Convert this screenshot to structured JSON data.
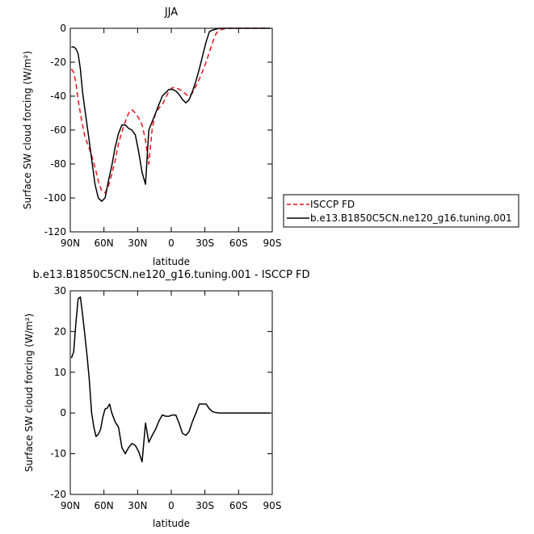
{
  "chart_data": [
    {
      "type": "line",
      "title": "JJA",
      "xlabel": "latitude",
      "ylabel": "Surface SW cloud forcing (W/m²)",
      "xlim": [
        90,
        -90
      ],
      "ylim": [
        -120,
        0
      ],
      "x_ticks": [
        "90N",
        "60N",
        "30N",
        "0",
        "30S",
        "60S",
        "90S"
      ],
      "x_tick_values": [
        90,
        60,
        30,
        0,
        -30,
        -60,
        -90
      ],
      "y_ticks": [
        0,
        -20,
        -40,
        -60,
        -80,
        -100,
        -120
      ],
      "legend_position": "right",
      "series": [
        {
          "name": "ISCCP FD",
          "color": "#e8101a",
          "dash": "dashed",
          "x": [
            89,
            87,
            85,
            83,
            80,
            77,
            74,
            71,
            68,
            65,
            62,
            59,
            56,
            53,
            50,
            47,
            44,
            41,
            38,
            35,
            32,
            29,
            26,
            23,
            20,
            17,
            14,
            11,
            8,
            5,
            2,
            -1,
            -4,
            -7,
            -10,
            -13,
            -16,
            -19,
            -22,
            -25,
            -28,
            -31,
            -34,
            -37,
            -40,
            -43,
            -46,
            -49,
            -52,
            -55,
            -58,
            -61,
            -64,
            -67,
            -70,
            -73,
            -76,
            -79,
            -82,
            -85,
            -88
          ],
          "y": [
            -24,
            -26,
            -32,
            -42,
            -54,
            -64,
            -69,
            -75,
            -82,
            -90,
            -96,
            -97,
            -93,
            -86,
            -78,
            -68,
            -61,
            -55,
            -50,
            -48,
            -50,
            -53,
            -57,
            -66,
            -80,
            -59,
            -50,
            -47,
            -45,
            -41,
            -37,
            -35,
            -35,
            -36,
            -37,
            -39,
            -40,
            -38,
            -34,
            -30,
            -25,
            -20,
            -14,
            -8,
            -3,
            -1,
            -0.5,
            -0.2,
            0,
            0,
            0,
            0,
            0,
            0,
            0,
            0,
            0,
            0,
            0,
            0,
            0
          ]
        },
        {
          "name": "b.e13.B1850C5CN.ne120_g16.tuning.001",
          "color": "#000000",
          "dash": "solid",
          "x": [
            89,
            87,
            85,
            83,
            81,
            79,
            77,
            74,
            71,
            68,
            65,
            62,
            59,
            56,
            53,
            50,
            47,
            44,
            41,
            38,
            35,
            32,
            29,
            26,
            23,
            20,
            17,
            14,
            11,
            8,
            5,
            2,
            -1,
            -4,
            -7,
            -10,
            -13,
            -16,
            -19,
            -22,
            -25,
            -28,
            -31,
            -34,
            -37,
            -40,
            -43,
            -46,
            -49,
            -52,
            -55,
            -58,
            -61,
            -64,
            -67,
            -70,
            -73,
            -76,
            -79,
            -82,
            -85,
            -88
          ],
          "y": [
            -11,
            -11,
            -12,
            -15,
            -24,
            -38,
            -48,
            -62,
            -77,
            -92,
            -100,
            -102,
            -100,
            -90,
            -81,
            -70,
            -62,
            -57,
            -57,
            -59,
            -60,
            -63,
            -73,
            -85,
            -92,
            -60,
            -55,
            -50,
            -45,
            -40,
            -38,
            -36,
            -36,
            -37,
            -39,
            -42,
            -44,
            -42,
            -37,
            -31,
            -24,
            -16,
            -8,
            -2,
            -1,
            -0.5,
            0,
            0,
            0,
            0,
            0,
            0,
            0,
            0,
            0,
            0,
            0,
            0,
            0,
            0,
            0,
            0
          ]
        }
      ]
    },
    {
      "type": "line",
      "title": "b.e13.B1850C5CN.ne120_g16.tuning.001 - ISCCP FD",
      "xlabel": "latitude",
      "ylabel": "Surface SW cloud forcing (W/m²)",
      "xlim": [
        90,
        -90
      ],
      "ylim": [
        -20,
        30
      ],
      "x_ticks": [
        "90N",
        "60N",
        "30N",
        "0",
        "30S",
        "60S",
        "90S"
      ],
      "x_tick_values": [
        90,
        60,
        30,
        0,
        -30,
        -60,
        -90
      ],
      "y_ticks": [
        30,
        20,
        10,
        0,
        -10,
        -20
      ],
      "series": [
        {
          "name": "",
          "color": "#000000",
          "dash": "solid",
          "x": [
            89,
            87,
            85,
            83,
            81,
            79,
            77,
            75,
            73,
            71,
            69,
            67,
            65,
            63,
            61,
            59,
            57,
            55,
            53,
            50,
            47,
            44,
            41,
            38,
            35,
            32,
            29,
            26,
            23,
            20,
            17,
            14,
            11,
            8,
            5,
            2,
            -1,
            -4,
            -7,
            -10,
            -13,
            -16,
            -19,
            -22,
            -25,
            -28,
            -31,
            -34,
            -37,
            -40,
            -43,
            -46,
            -49,
            -52,
            -55,
            -58,
            -61,
            -64,
            -67,
            -70,
            -73,
            -76,
            -79,
            -82,
            -85,
            -88
          ],
          "y": [
            13.5,
            15,
            22,
            28,
            28.5,
            24,
            19,
            14,
            8,
            0,
            -3.5,
            -5.8,
            -5.2,
            -4,
            -1,
            1,
            1.2,
            2.2,
            0,
            -2.2,
            -3.5,
            -8.5,
            -10,
            -8.5,
            -7.5,
            -8,
            -9.5,
            -12,
            -2.5,
            -7.2,
            -5.5,
            -4,
            -2,
            -0.5,
            -0.8,
            -0.8,
            -0.5,
            -0.5,
            -2.5,
            -5,
            -5.5,
            -4.5,
            -2,
            0,
            2.2,
            2.2,
            2.2,
            1,
            0.3,
            0.1,
            0,
            0,
            0,
            0,
            0,
            0,
            0,
            0,
            0,
            0,
            0,
            0,
            0,
            0,
            0,
            0
          ]
        }
      ]
    }
  ]
}
